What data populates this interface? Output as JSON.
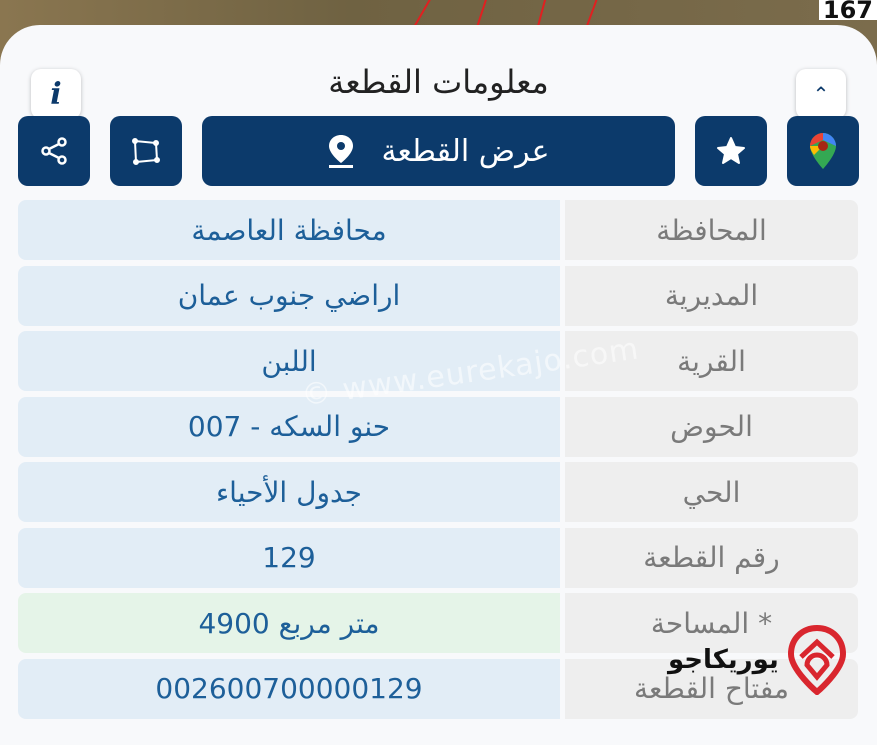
{
  "map": {
    "label": "167"
  },
  "header": {
    "title": "معلومات القطعة",
    "info_label": "i"
  },
  "toolbar": {
    "show_parcel_label": "عرض القطعة"
  },
  "rows": [
    {
      "label": "المحافظة",
      "value": "محافظة العاصمة"
    },
    {
      "label": "المديرية",
      "value": "اراضي جنوب عمان"
    },
    {
      "label": "القرية",
      "value": "اللبن"
    },
    {
      "label": "الحوض",
      "value": "حنو السكه - 007"
    },
    {
      "label": "الحي",
      "value": "جدول الأحياء"
    },
    {
      "label": "رقم القطعة",
      "value": "129"
    },
    {
      "label": "المساحة *",
      "value": "4900  متر مربع"
    },
    {
      "label": "مفتاح القطعة",
      "value": "002600700000129"
    }
  ],
  "watermark": "© www.eurekajo.com",
  "logo": {
    "text": "يوريكاجو"
  },
  "colors": {
    "primary": "#0c3a6b",
    "value_bg": "#e2edf6",
    "area_bg": "#e5f4e8",
    "value_text": "#1d5f99",
    "logo_red": "#d9262e"
  }
}
